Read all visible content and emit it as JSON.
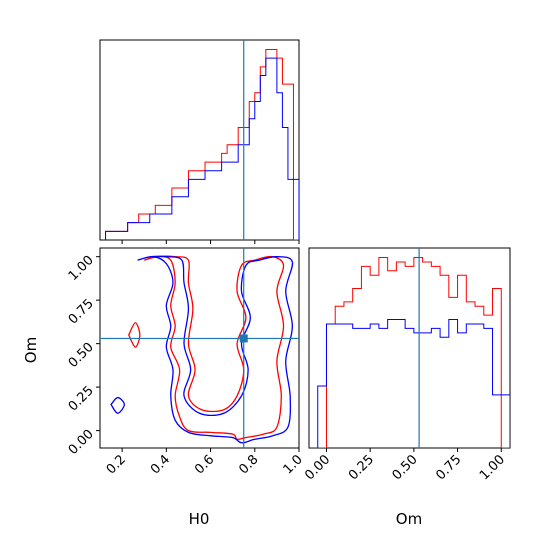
{
  "chart_data": [
    {
      "type": "histogram",
      "panel": "top-left",
      "parameter": "H0",
      "xlim": [
        0.1,
        1.0
      ],
      "truth": 0.75,
      "bin_edges": [
        0.125,
        0.15,
        0.175,
        0.2,
        0.225,
        0.25,
        0.275,
        0.3,
        0.325,
        0.35,
        0.375,
        0.4,
        0.425,
        0.45,
        0.475,
        0.5,
        0.525,
        0.55,
        0.575,
        0.6,
        0.625,
        0.65,
        0.675,
        0.7,
        0.725,
        0.75,
        0.775,
        0.8,
        0.825,
        0.85,
        0.875,
        0.9,
        0.925,
        0.95,
        0.975,
        1.0
      ],
      "series": [
        {
          "color": "#ff0000",
          "values": [
            1,
            1,
            1,
            1,
            2,
            2,
            3,
            3,
            3,
            4,
            4,
            4,
            6,
            6,
            6,
            8,
            8,
            8,
            9,
            9,
            9,
            10,
            11,
            11,
            13,
            13,
            16,
            17,
            20,
            22,
            22,
            21,
            18,
            18,
            0
          ]
        },
        {
          "color": "#0000ff",
          "values": [
            1,
            1,
            1,
            1,
            2,
            2,
            2,
            2,
            3,
            3,
            3,
            3,
            5,
            5,
            5,
            7,
            7,
            7,
            8,
            8,
            8,
            9,
            9,
            9,
            11,
            11,
            14,
            16,
            19,
            21,
            21,
            17,
            13,
            7,
            7
          ]
        }
      ]
    },
    {
      "type": "contour",
      "panel": "bottom-left",
      "xlabel": "H0",
      "ylabel": "Om",
      "xlim": [
        0.1,
        1.0
      ],
      "ylim": [
        -0.1,
        1.05
      ],
      "xticks": [
        "0.2",
        "0.4",
        "0.6",
        "0.8",
        "1.0"
      ],
      "yticks": [
        "0.00",
        "0.25",
        "0.50",
        "0.75",
        "1.00"
      ],
      "truth": [
        0.75,
        0.53
      ],
      "series": [
        {
          "color": "#ff0000",
          "contours": [
            [
              [
                0.3,
                0.98
              ],
              [
                0.36,
                1.0
              ],
              [
                0.42,
                0.98
              ],
              [
                0.44,
                0.85
              ],
              [
                0.42,
                0.72
              ],
              [
                0.44,
                0.6
              ],
              [
                0.42,
                0.48
              ],
              [
                0.46,
                0.35
              ],
              [
                0.44,
                0.2
              ],
              [
                0.46,
                0.08
              ],
              [
                0.5,
                0.0
              ],
              [
                0.6,
                -0.01
              ],
              [
                0.7,
                -0.02
              ],
              [
                0.72,
                -0.05
              ],
              [
                0.76,
                -0.04
              ],
              [
                0.84,
                -0.02
              ],
              [
                0.9,
                0.02
              ],
              [
                0.92,
                0.2
              ],
              [
                0.9,
                0.4
              ],
              [
                0.93,
                0.6
              ],
              [
                0.9,
                0.8
              ],
              [
                0.93,
                0.95
              ],
              [
                0.88,
                1.0
              ],
              [
                0.8,
                0.98
              ],
              [
                0.74,
                0.95
              ],
              [
                0.72,
                0.8
              ],
              [
                0.76,
                0.65
              ],
              [
                0.72,
                0.5
              ],
              [
                0.75,
                0.35
              ],
              [
                0.72,
                0.2
              ],
              [
                0.66,
                0.12
              ],
              [
                0.56,
                0.12
              ],
              [
                0.5,
                0.2
              ],
              [
                0.53,
                0.35
              ],
              [
                0.5,
                0.5
              ],
              [
                0.52,
                0.7
              ],
              [
                0.5,
                0.85
              ],
              [
                0.5,
                0.98
              ],
              [
                0.44,
                1.0
              ],
              [
                0.36,
                1.0
              ],
              [
                0.3,
                0.98
              ]
            ],
            [
              [
                0.23,
                0.55
              ],
              [
                0.26,
                0.62
              ],
              [
                0.28,
                0.55
              ],
              [
                0.26,
                0.48
              ],
              [
                0.23,
                0.55
              ]
            ]
          ]
        },
        {
          "color": "#0000ff",
          "contours": [
            [
              [
                0.27,
                0.98
              ],
              [
                0.34,
                1.0
              ],
              [
                0.4,
                0.96
              ],
              [
                0.43,
                0.85
              ],
              [
                0.4,
                0.72
              ],
              [
                0.42,
                0.6
              ],
              [
                0.4,
                0.48
              ],
              [
                0.43,
                0.35
              ],
              [
                0.42,
                0.2
              ],
              [
                0.44,
                0.06
              ],
              [
                0.5,
                -0.01
              ],
              [
                0.6,
                -0.03
              ],
              [
                0.7,
                -0.04
              ],
              [
                0.74,
                -0.07
              ],
              [
                0.8,
                -0.05
              ],
              [
                0.88,
                -0.03
              ],
              [
                0.95,
                0.02
              ],
              [
                0.96,
                0.2
              ],
              [
                0.94,
                0.4
              ],
              [
                0.97,
                0.6
              ],
              [
                0.94,
                0.8
              ],
              [
                0.97,
                0.97
              ],
              [
                0.9,
                1.0
              ],
              [
                0.82,
                0.98
              ],
              [
                0.76,
                0.95
              ],
              [
                0.74,
                0.8
              ],
              [
                0.78,
                0.65
              ],
              [
                0.74,
                0.5
              ],
              [
                0.77,
                0.35
              ],
              [
                0.74,
                0.2
              ],
              [
                0.66,
                0.1
              ],
              [
                0.55,
                0.1
              ],
              [
                0.48,
                0.2
              ],
              [
                0.51,
                0.35
              ],
              [
                0.48,
                0.5
              ],
              [
                0.5,
                0.7
              ],
              [
                0.48,
                0.85
              ],
              [
                0.47,
                0.98
              ],
              [
                0.4,
                1.0
              ],
              [
                0.33,
                1.0
              ],
              [
                0.27,
                0.98
              ]
            ],
            [
              [
                0.15,
                0.15
              ],
              [
                0.18,
                0.19
              ],
              [
                0.21,
                0.15
              ],
              [
                0.18,
                0.1
              ],
              [
                0.15,
                0.15
              ]
            ]
          ]
        }
      ]
    },
    {
      "type": "histogram",
      "panel": "bottom-right",
      "parameter": "Om",
      "xlabel": "Om",
      "xlim": [
        -0.1,
        1.05
      ],
      "xticks": [
        "0.00",
        "0.25",
        "0.50",
        "0.75",
        "1.00"
      ],
      "truth": 0.53,
      "bin_edges": [
        -0.1,
        -0.05,
        0.0,
        0.05,
        0.1,
        0.15,
        0.2,
        0.25,
        0.3,
        0.35,
        0.4,
        0.45,
        0.5,
        0.55,
        0.6,
        0.65,
        0.7,
        0.75,
        0.8,
        0.85,
        0.9,
        0.95,
        1.0,
        1.05
      ],
      "series": [
        {
          "color": "#ff0000",
          "values": [
            0,
            0,
            28,
            32,
            33,
            36,
            41,
            39,
            43,
            40,
            42,
            41,
            43,
            42,
            41,
            39,
            34,
            39,
            33,
            32,
            30,
            36,
            0
          ]
        },
        {
          "color": "#0000ff",
          "values": [
            0,
            14,
            28,
            28,
            28,
            27,
            27,
            28,
            27,
            29,
            29,
            27,
            26,
            26,
            27,
            25,
            29,
            26,
            28,
            28,
            27,
            12,
            12
          ]
        }
      ]
    }
  ]
}
